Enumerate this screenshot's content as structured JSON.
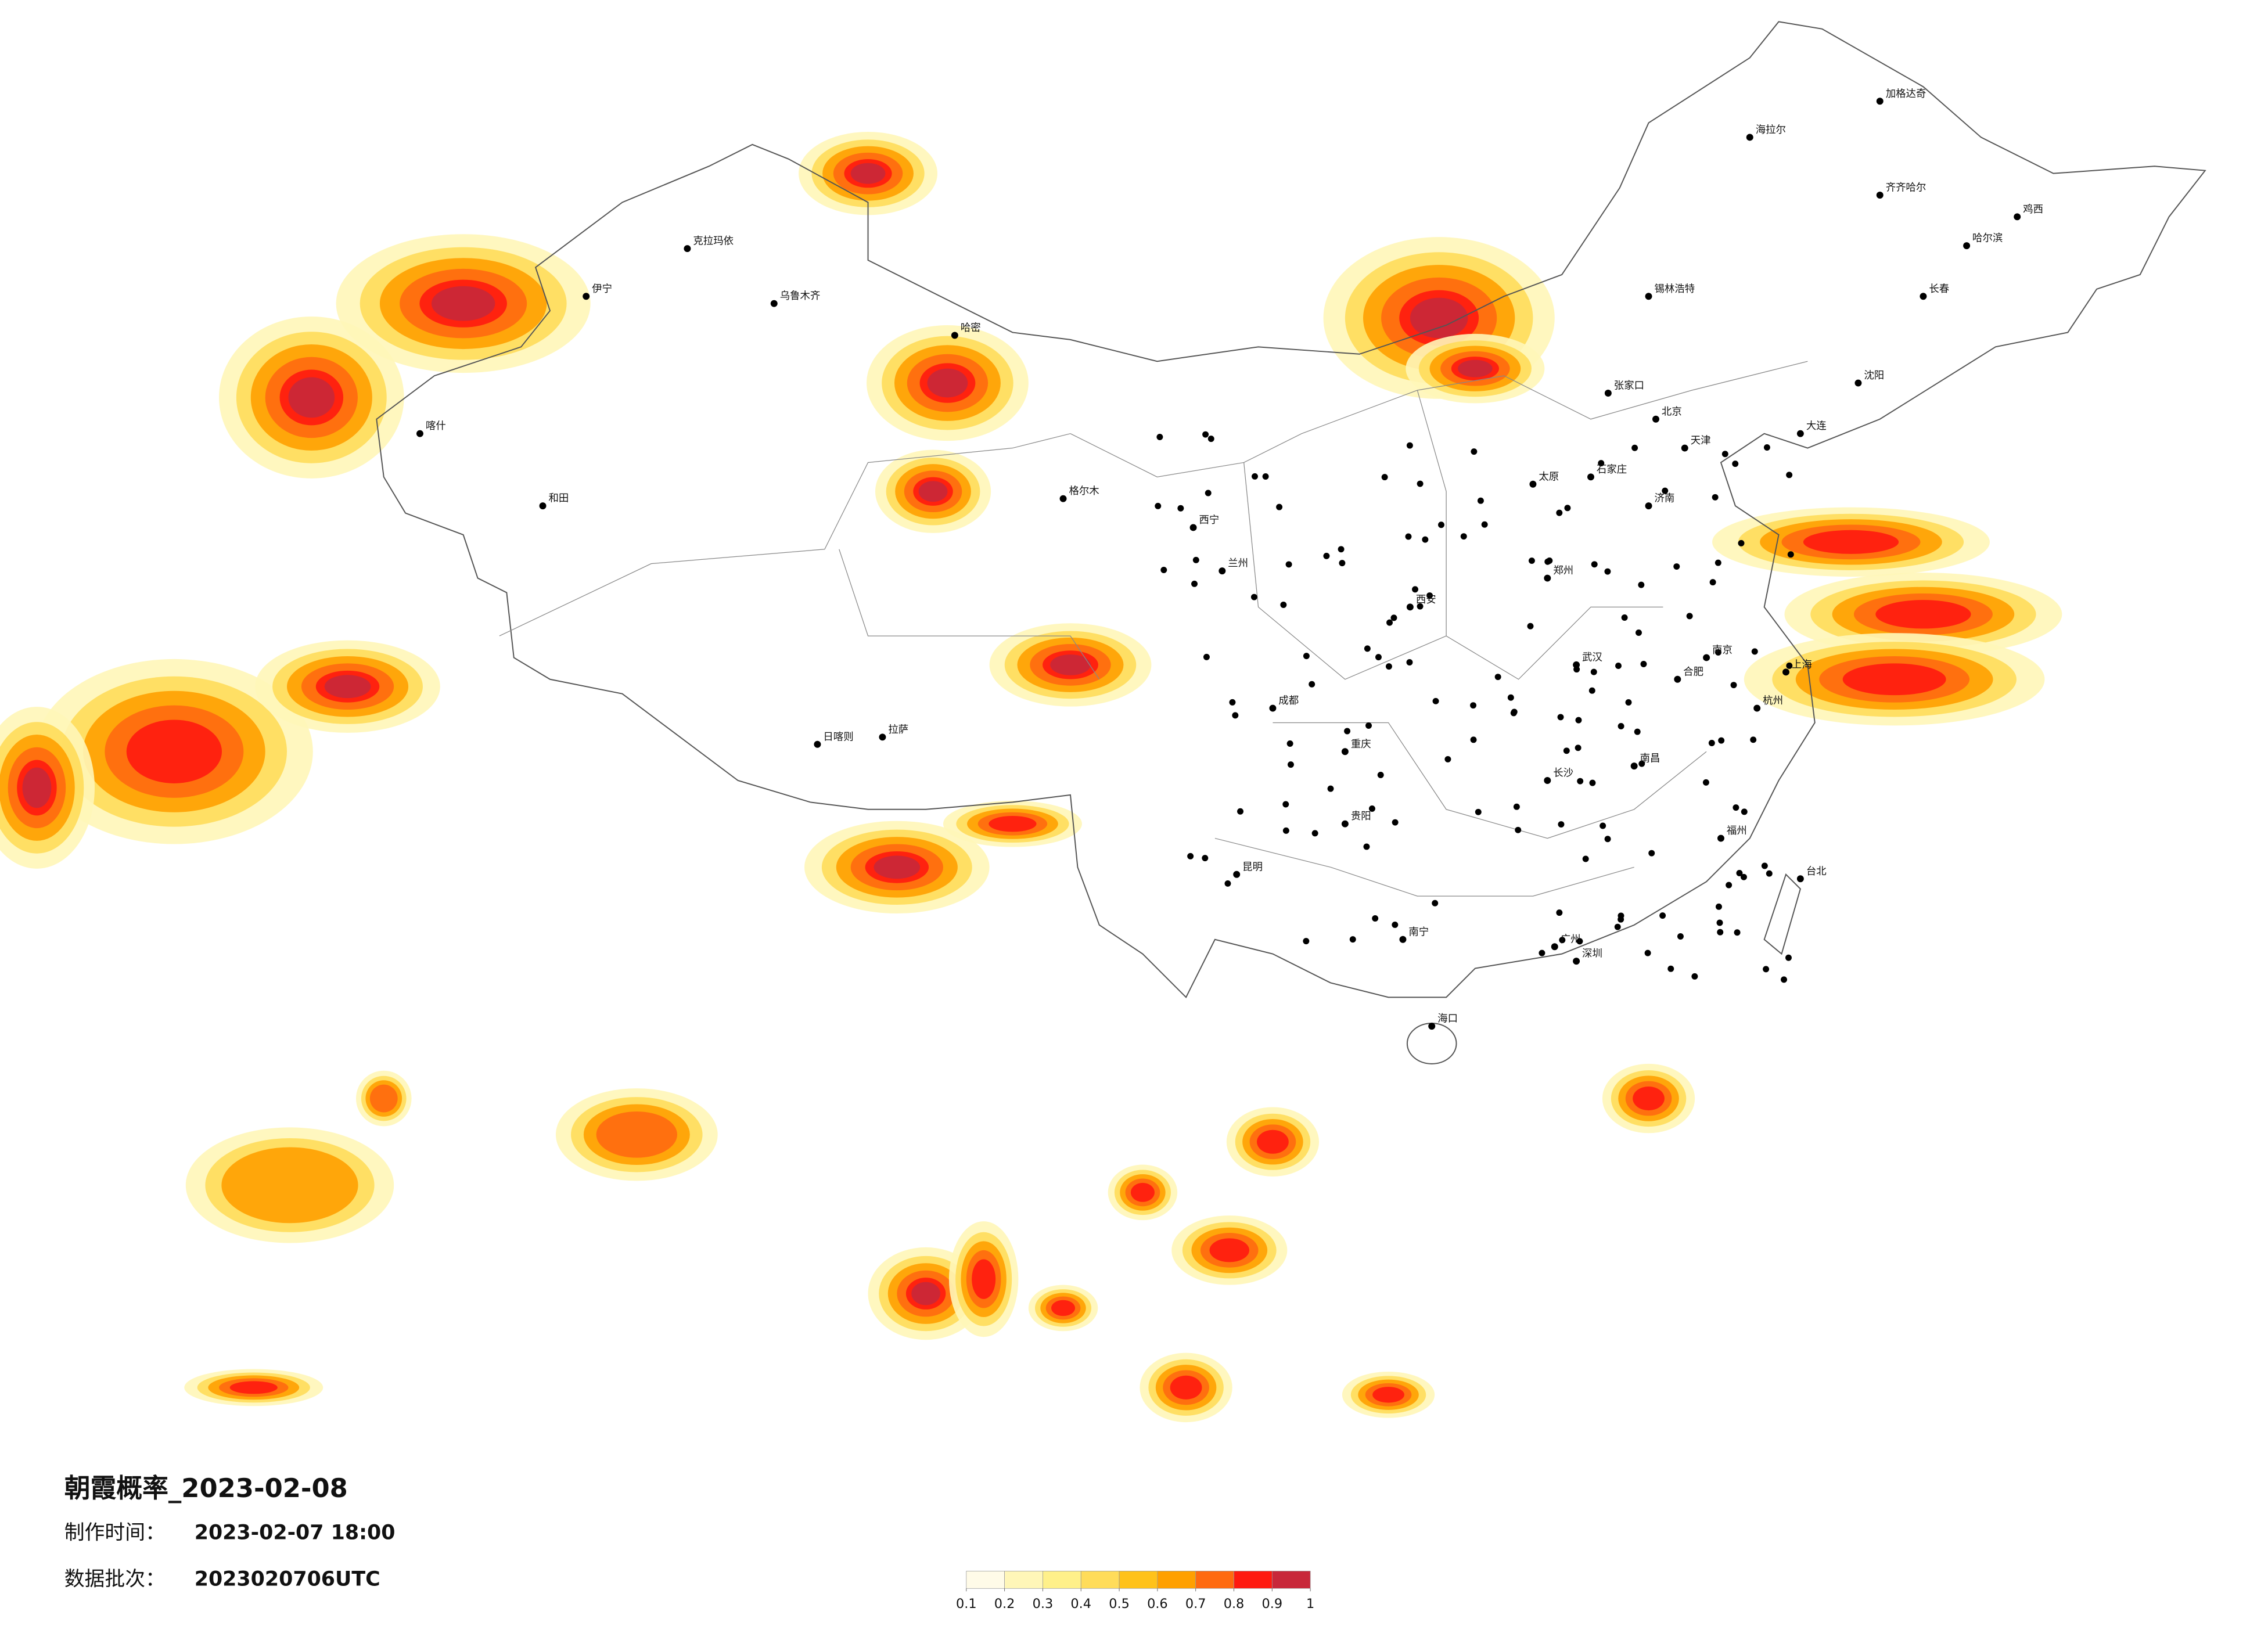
{
  "title": "朝霞概率_2023-02-08",
  "made_time": {
    "label": "制作时间：",
    "value": "2023-02-07 18:00"
  },
  "batch": {
    "label": "数据批次：",
    "value": "2023020706UTC"
  },
  "legend": {
    "colors": [
      "#fffbe8",
      "#fff6b8",
      "#fff08a",
      "#ffdc5a",
      "#ffc21a",
      "#ffa000",
      "#ff6a10",
      "#ff1a10",
      "#c8283a"
    ],
    "ticks": [
      0.1,
      0.2,
      0.3,
      0.4,
      0.5,
      0.6,
      0.7,
      0.8,
      0.9,
      1
    ]
  },
  "cities": [
    "北京",
    "天津",
    "上海",
    "广州",
    "深圳",
    "重庆",
    "成都",
    "武汉",
    "哈尔滨",
    "长春",
    "沈阳",
    "大连",
    "乌鲁木齐",
    "拉萨",
    "西宁",
    "兰州",
    "西安",
    "郑州",
    "济南",
    "南京",
    "杭州",
    "福州",
    "南昌",
    "长沙",
    "贵阳",
    "昆明",
    "南宁",
    "海口",
    "台北",
    "合肥",
    "太原",
    "石家庄",
    "和田",
    "喀什",
    "伊宁",
    "克拉玛依",
    "哈密",
    "海拉尔",
    "加格达奇",
    "齐齐哈尔",
    "日喀则",
    "格尔木",
    "锡林浩特",
    "张家口",
    "鸡西"
  ]
}
